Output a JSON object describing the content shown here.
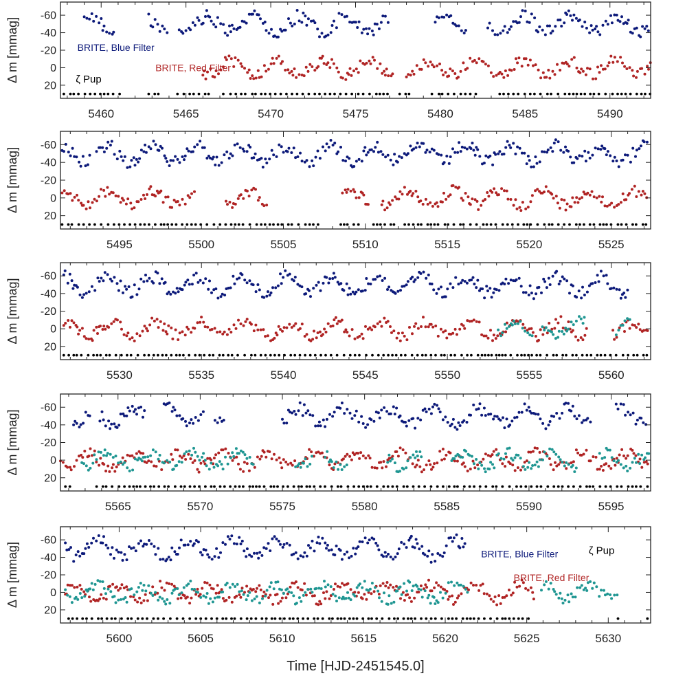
{
  "chart_data": {
    "type": "scatter",
    "figure_title": "",
    "ylabel": "Δ m [mmag]",
    "xlabel": "Time [HJD-2451545.0]",
    "colors": {
      "blue": "#0d1a7a",
      "red": "#b02424",
      "teal": "#1f9692",
      "marks": "#000000",
      "axes": "#222222"
    },
    "panels": [
      {
        "xlim": [
          5457.6,
          5492.4
        ],
        "xticks": [
          5460,
          5465,
          5470,
          5475,
          5480,
          5485,
          5490
        ],
        "ylim": [
          35,
          -75
        ],
        "yticks": [
          -60,
          -40,
          -20,
          0,
          20
        ],
        "ytick_labels": [
          "-60",
          "-40",
          "-20",
          "0",
          "20"
        ],
        "blue_segments": [
          [
            5459.0,
            5460.9
          ],
          [
            5462.8,
            5464.0
          ],
          [
            5464.6,
            5477.0
          ],
          [
            5479.7,
            5481.5
          ],
          [
            5482.8,
            5492.4
          ]
        ],
        "red_segments": [
          [
            5466.0,
            5477.2
          ],
          [
            5478.0,
            5492.4
          ]
        ],
        "teal_segments": [],
        "mark_segments": [
          [
            5457.8,
            5461.3
          ],
          [
            5462.8,
            5463.6
          ],
          [
            5464.5,
            5466.4
          ],
          [
            5467.2,
            5476.9
          ],
          [
            5477.6,
            5478.2
          ],
          [
            5479.5,
            5482.3
          ],
          [
            5483.5,
            5492.4
          ]
        ],
        "labels": [
          {
            "text": "BRITE, Blue Filter",
            "series": "blue",
            "anchor": "start",
            "x": 5458.6,
            "y": -23
          },
          {
            "text": "BRITE, Red Filter",
            "series": "red",
            "anchor": "start",
            "x": 5463.2,
            "y": 0
          },
          {
            "text": "ζ Pup",
            "series": "marks",
            "anchor": "start",
            "x": 5458.5,
            "y": 13
          }
        ]
      },
      {
        "xlim": [
          5491.4,
          5527.4
        ],
        "xticks": [
          5495,
          5500,
          5505,
          5510,
          5515,
          5520,
          5525
        ],
        "ylim": [
          35,
          -75
        ],
        "yticks": [
          -60,
          -40,
          -20,
          0,
          20
        ],
        "ytick_labels": [
          "-60",
          "-40",
          "-20",
          "0",
          "20"
        ],
        "blue_segments": [
          [
            5491.5,
            5493.2
          ],
          [
            5493.6,
            5527.2
          ]
        ],
        "red_segments": [
          [
            5491.5,
            5499.6
          ],
          [
            5501.5,
            5504.0
          ],
          [
            5508.6,
            5510.2
          ],
          [
            5511.0,
            5527.2
          ]
        ],
        "teal_segments": [],
        "mark_segments": [
          [
            5491.5,
            5507.3
          ],
          [
            5508.5,
            5509.6
          ],
          [
            5510.5,
            5512.0
          ],
          [
            5512.4,
            5527.2
          ]
        ],
        "labels": []
      },
      {
        "xlim": [
          5526.4,
          5562.4
        ],
        "xticks": [
          5530,
          5535,
          5540,
          5545,
          5550,
          5555,
          5560
        ],
        "ylim": [
          35,
          -75
        ],
        "yticks": [
          -60,
          -40,
          -20,
          0,
          20
        ],
        "ytick_labels": [
          "-60",
          "-40",
          "-20",
          "0",
          "20"
        ],
        "blue_segments": [
          [
            5526.6,
            5561.0
          ]
        ],
        "red_segments": [
          [
            5526.6,
            5558.6
          ],
          [
            5560.1,
            5562.3
          ]
        ],
        "teal_segments": [
          [
            5553.1,
            5555.2
          ],
          [
            5555.8,
            5558.4
          ],
          [
            5560.3,
            5561.2
          ]
        ],
        "mark_segments": [
          [
            5526.6,
            5562.2
          ]
        ],
        "labels": []
      },
      {
        "xlim": [
          5561.5,
          5597.4
        ],
        "xticks": [
          5565,
          5570,
          5575,
          5580,
          5585,
          5590,
          5595
        ],
        "ylim": [
          35,
          -75
        ],
        "yticks": [
          -60,
          -40,
          -20,
          0,
          20
        ],
        "ytick_labels": [
          "-60",
          "-40",
          "-20",
          "0",
          "20"
        ],
        "blue_segments": [
          [
            5562.3,
            5563.4
          ],
          [
            5563.9,
            5566.7
          ],
          [
            5567.8,
            5570.3
          ],
          [
            5570.9,
            5571.5
          ],
          [
            5575.0,
            5593.8
          ],
          [
            5595.3,
            5597.2
          ]
        ],
        "red_segments": [
          [
            5561.5,
            5597.3
          ]
        ],
        "teal_segments": [
          [
            5562.8,
            5573.3
          ],
          [
            5575.8,
            5576.8
          ],
          [
            5577.6,
            5579.0
          ],
          [
            5581.4,
            5583.5
          ],
          [
            5585.3,
            5592.9
          ],
          [
            5594.3,
            5597.3
          ]
        ],
        "mark_segments": [
          [
            5561.8,
            5562.3
          ],
          [
            5563.7,
            5597.3
          ]
        ],
        "labels": []
      },
      {
        "xlim": [
          5596.4,
          5632.6
        ],
        "xticks": [
          5600,
          5605,
          5610,
          5615,
          5620,
          5625,
          5630
        ],
        "ylim": [
          35,
          -75
        ],
        "yticks": [
          -60,
          -40,
          -20,
          0,
          20
        ],
        "ytick_labels": [
          "-60",
          "-40",
          "-20",
          "0",
          "20"
        ],
        "blue_segments": [
          [
            5596.7,
            5621.3
          ]
        ],
        "red_segments": [
          [
            5596.7,
            5625.5
          ]
        ],
        "teal_segments": [
          [
            5596.7,
            5621.4
          ],
          [
            5625.9,
            5630.6
          ]
        ],
        "mark_segments": [
          [
            5596.9,
            5625.4
          ],
          [
            5630.6,
            5630.9
          ],
          [
            5632.4,
            5632.6
          ]
        ],
        "labels": [
          {
            "text": "BRITE, Blue Filter",
            "series": "blue",
            "anchor": "start",
            "x": 5622.2,
            "y": -44
          },
          {
            "text": "ζ Pup",
            "series": "marks",
            "anchor": "start",
            "x": 5628.8,
            "y": -48
          },
          {
            "text": "BRITE, Red Filter",
            "series": "red",
            "anchor": "start",
            "x": 5624.2,
            "y": -17
          }
        ]
      }
    ]
  }
}
